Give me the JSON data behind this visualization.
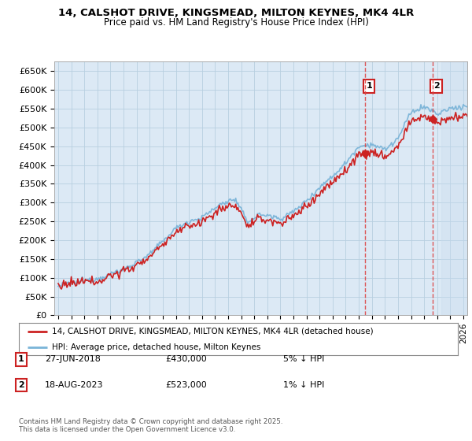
{
  "title": "14, CALSHOT DRIVE, KINGSMEAD, MILTON KEYNES, MK4 4LR",
  "subtitle": "Price paid vs. HM Land Registry's House Price Index (HPI)",
  "ylabel_ticks": [
    "£0",
    "£50K",
    "£100K",
    "£150K",
    "£200K",
    "£250K",
    "£300K",
    "£350K",
    "£400K",
    "£450K",
    "£500K",
    "£550K",
    "£600K",
    "£650K"
  ],
  "yticks": [
    0,
    50000,
    100000,
    150000,
    200000,
    250000,
    300000,
    350000,
    400000,
    450000,
    500000,
    550000,
    600000,
    650000
  ],
  "ylim": [
    0,
    675000
  ],
  "xlim_start": 1994.7,
  "xlim_end": 2026.3,
  "hpi_color": "#7ab4d8",
  "price_color": "#cc2222",
  "point1_date": 2018.487,
  "point1_value": 430000,
  "point2_date": 2023.626,
  "point2_value": 523000,
  "shade_start": 2024.3,
  "legend_label1": "14, CALSHOT DRIVE, KINGSMEAD, MILTON KEYNES, MK4 4LR (detached house)",
  "legend_label2": "HPI: Average price, detached house, Milton Keynes",
  "ann1_date_str": "27-JUN-2018",
  "ann1_price_str": "£430,000",
  "ann1_hpi_str": "5% ↓ HPI",
  "ann2_date_str": "18-AUG-2023",
  "ann2_price_str": "£523,000",
  "ann2_hpi_str": "1% ↓ HPI",
  "footer": "Contains HM Land Registry data © Crown copyright and database right 2025.\nThis data is licensed under the Open Government Licence v3.0.",
  "bg_color": "#ffffff",
  "plot_bg_color": "#dce9f5",
  "grid_color": "#b8cfe0"
}
